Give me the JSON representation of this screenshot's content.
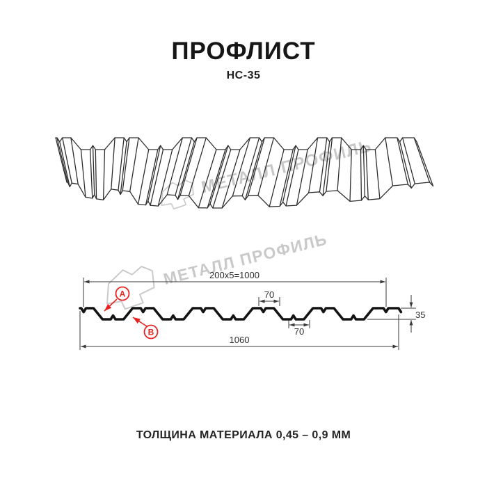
{
  "page": {
    "title": "ПРОФЛИСТ",
    "subtitle": "НС-35",
    "footer": "ТОЛЩИНА МАТЕРИАЛА 0,45 – 0,9 ММ"
  },
  "watermark": {
    "brand": "МЕТАЛЛ ПРОФИЛЬ"
  },
  "diagram": {
    "dimensions": {
      "top_span": "200x5=1000",
      "rib_top_width": "70",
      "rib_bottom_width": "70",
      "height": "35",
      "overall_width": "1060"
    },
    "callouts": {
      "a": "А",
      "b": "В"
    },
    "geometry_mm": {
      "profile_height": 35,
      "wave_period": 200,
      "waves_covering": 5,
      "covering_width": 1000,
      "overall_width": 1060,
      "top_flat": 70,
      "bottom_flat": 70
    }
  },
  "colors": {
    "line": "#2e2e2e",
    "cross_section": "#141414",
    "dimension": "#3a3a3a",
    "accent_red": "#e62320",
    "watermark": "#c9c9c9",
    "background": "#ffffff"
  }
}
